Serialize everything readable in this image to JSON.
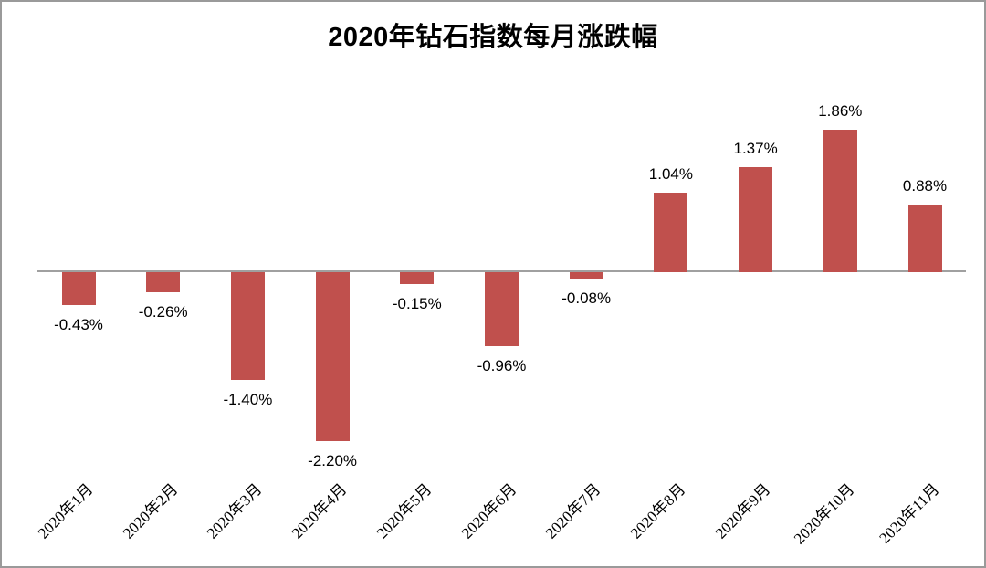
{
  "frame": {
    "background": "#ffffff",
    "border_color": "#9a9a9a"
  },
  "chart_data": {
    "type": "bar",
    "title": "2020年钻石指数每月涨跌幅",
    "categories": [
      "2020年1月",
      "2020年2月",
      "2020年3月",
      "2020年4月",
      "2020年5月",
      "2020年6月",
      "2020年7月",
      "2020年8月",
      "2020年9月",
      "2020年10月",
      "2020年11月"
    ],
    "values": [
      -0.43,
      -0.26,
      -1.4,
      -2.2,
      -0.15,
      -0.96,
      -0.08,
      1.04,
      1.37,
      1.86,
      0.88
    ],
    "data_labels": [
      "-0.43%",
      "-0.26%",
      "-1.40%",
      "-2.20%",
      "-0.15%",
      "-0.96%",
      "-0.08%",
      "1.04%",
      "1.37%",
      "1.86%",
      "0.88%"
    ],
    "xlabel": "",
    "ylabel": "",
    "ylim": [
      -2.6,
      2.2
    ],
    "baseline": 0,
    "grid": false,
    "legend": false,
    "bar_color": "#c0504d",
    "axis_line_color": "#a0a0a0",
    "label_color": "#000000",
    "title_color": "#000000"
  }
}
